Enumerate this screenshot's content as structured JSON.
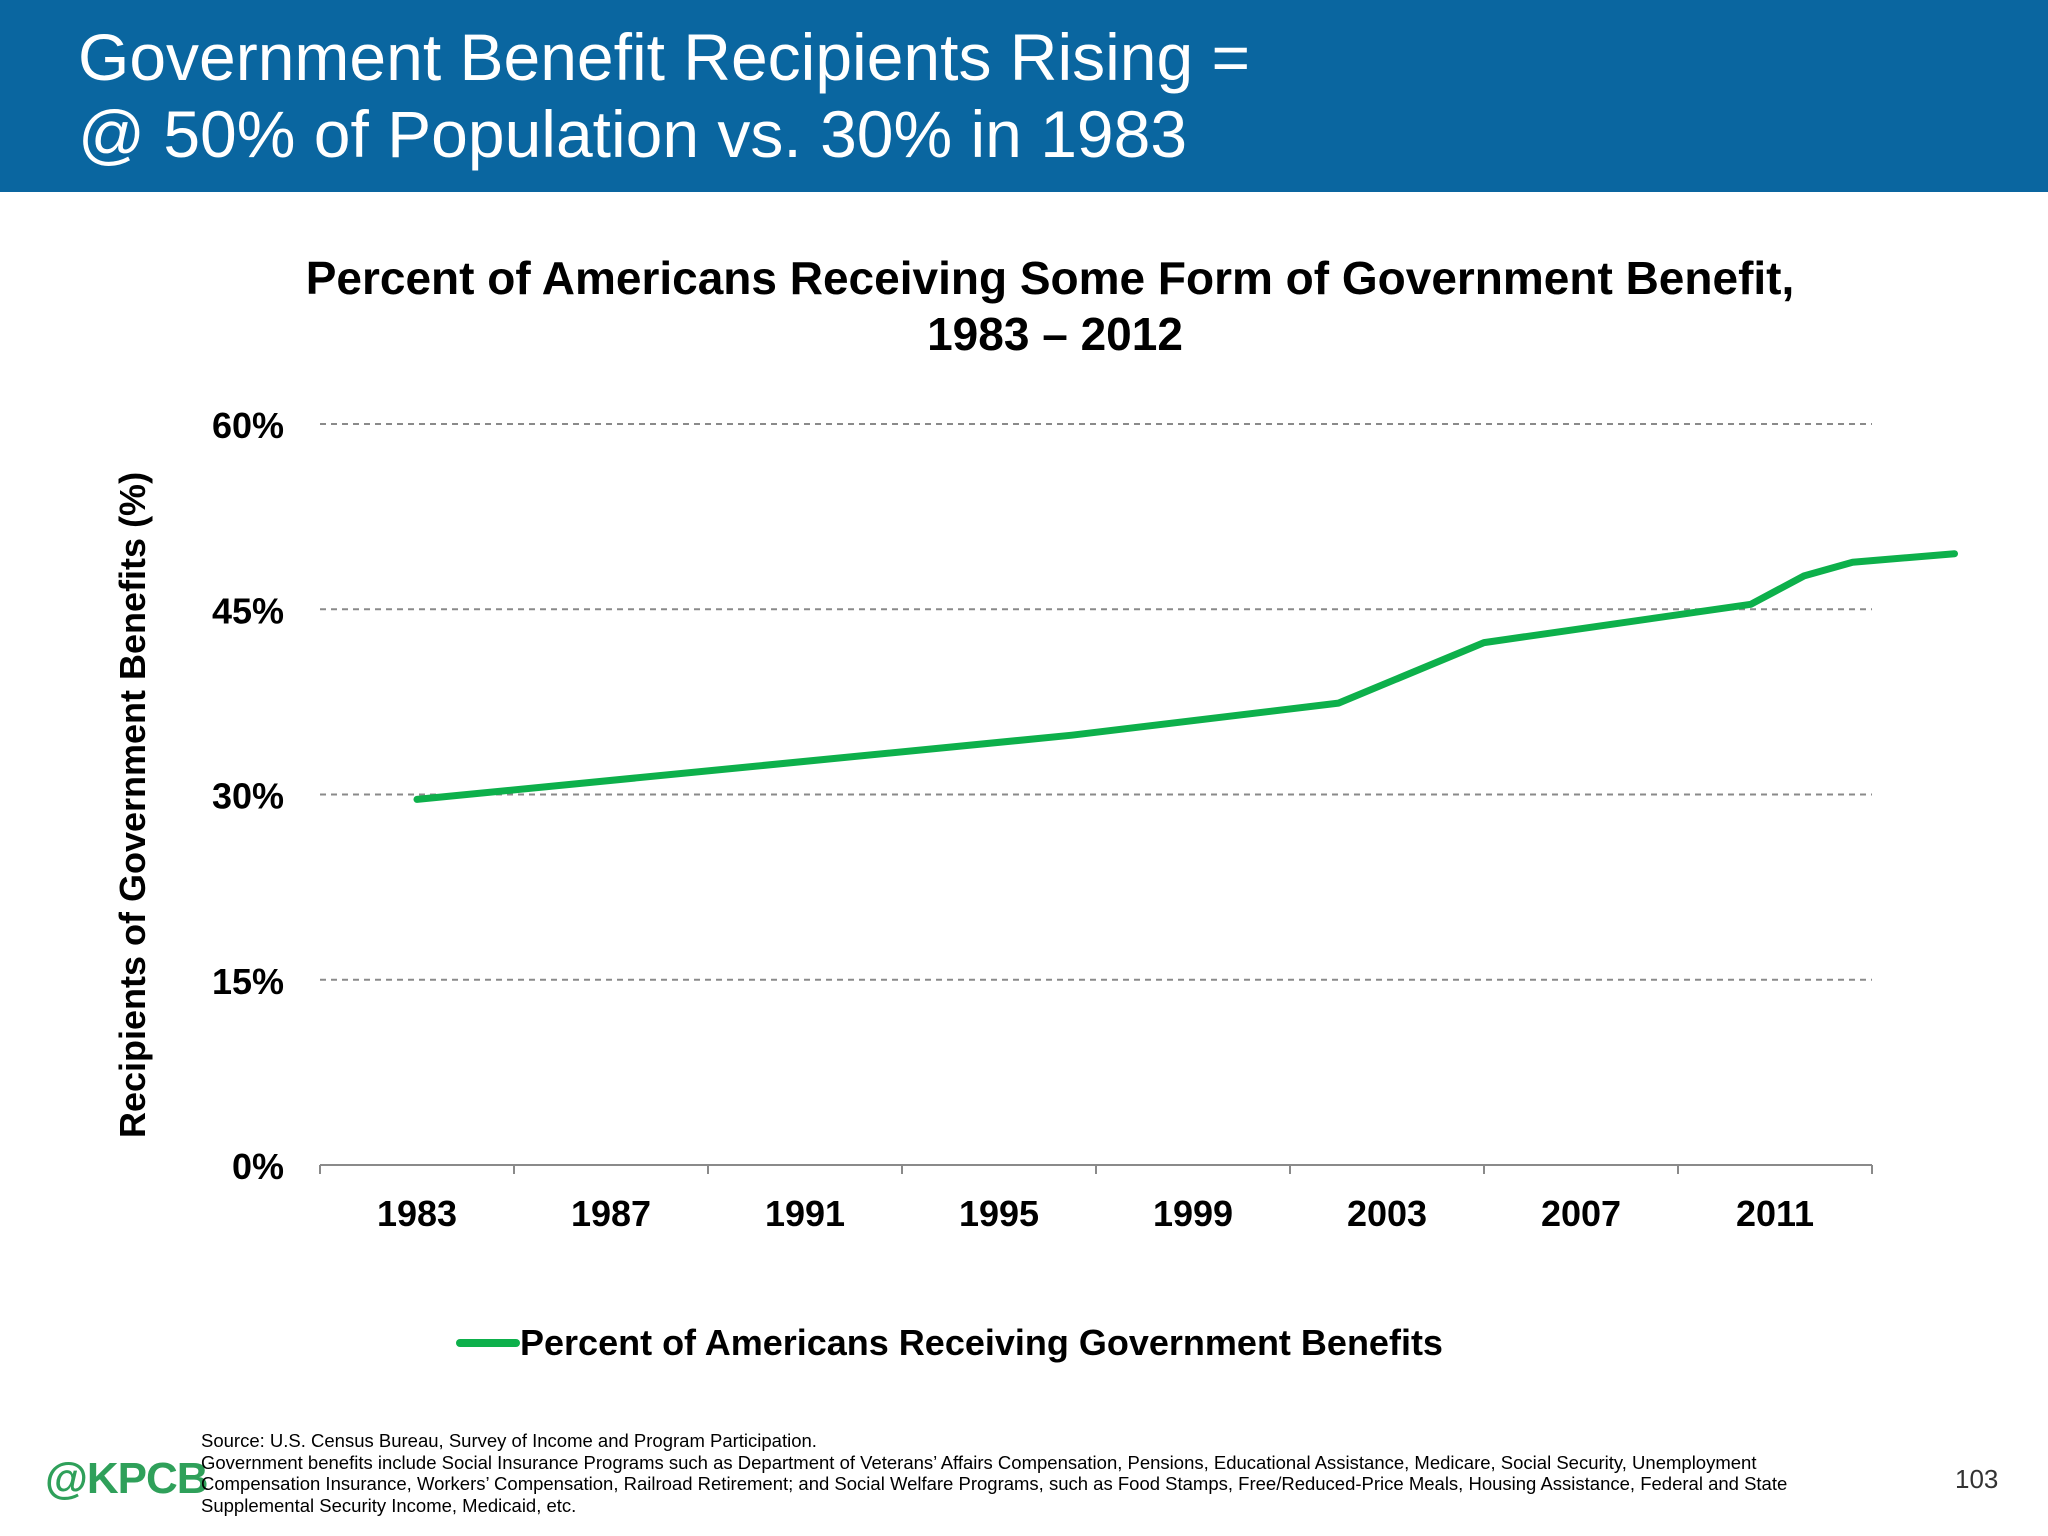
{
  "slide": {
    "title_line1": "Government Benefit Recipients Rising =",
    "title_line2": "@ 50% of Population vs. 30% in 1983",
    "logo": "@KPCB",
    "page_number": "103"
  },
  "footer": {
    "source_lines": [
      "Source: U.S. Census Bureau, Survey of Income and Program Participation.",
      "Government benefits include Social Insurance Programs such as Department of Veterans’ Affairs Compensation, Pensions, Educational Assistance, Medicare, Social Security, Unemployment",
      "Compensation Insurance, Workers’ Compensation, Railroad Retirement; and Social Welfare Programs, such as Food Stamps, Free/Reduced-Price Meals, Housing Assistance, Federal and State",
      "Supplemental Security Income, Medicaid, etc."
    ]
  },
  "chart_data": {
    "type": "line",
    "title_line1": "Percent of Americans Receiving Some Form of Government Benefit,",
    "title_line2": "1983 – 2012",
    "ylabel": "Recipients of Government Benefits (%)",
    "xlabel": "",
    "xlim": [
      1981,
      2013
    ],
    "ylim": [
      0,
      60
    ],
    "x_ticks": [
      1981,
      1985,
      1989,
      1993,
      1997,
      2001,
      2005,
      2009,
      2013
    ],
    "x_tick_labels": [
      "1983",
      "1987",
      "1991",
      "1995",
      "1999",
      "2003",
      "2007",
      "2011"
    ],
    "y_ticks": [
      0,
      15,
      30,
      45,
      60
    ],
    "y_tick_labels": [
      "0%",
      "15%",
      "30%",
      "45%",
      "60%"
    ],
    "grid": true,
    "legend_position": "bottom-center",
    "series": [
      {
        "name": "Percent of Americans Receiving Government Benefits",
        "color": "#0db04b",
        "x": [
          1983.0,
          1996.5,
          2002.0,
          2005.0,
          2010.5,
          2011.6,
          2012.6,
          2014.7
        ],
        "y": [
          29.6,
          34.8,
          37.4,
          42.3,
          45.4,
          47.7,
          48.8,
          49.5
        ]
      }
    ]
  }
}
